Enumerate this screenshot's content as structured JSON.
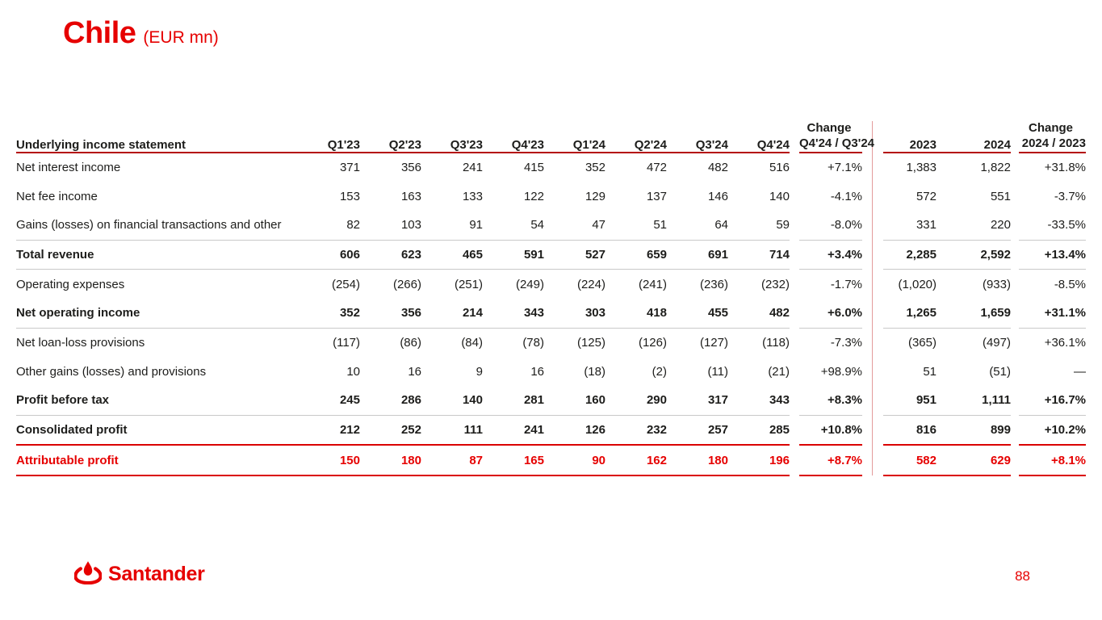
{
  "title": {
    "main": "Chile",
    "unit": "(EUR mn)"
  },
  "colors": {
    "brand_red": "#e60000",
    "header_dark_red": "#990000",
    "rule_red": "#da0000",
    "rule_gray": "#c9c9c9",
    "divider_pink": "#e39b9b",
    "text": "#1d1d1b"
  },
  "table": {
    "header": {
      "label": "Underlying income statement",
      "quarters": [
        "Q1'23",
        "Q2'23",
        "Q3'23",
        "Q4'23",
        "Q1'24",
        "Q2'24",
        "Q3'24",
        "Q4'24"
      ],
      "change_q": {
        "top": "Change",
        "bottom": "Q4'24 / Q3'24"
      },
      "years": [
        "2023",
        "2024"
      ],
      "change_y": {
        "top": "Change",
        "bottom": "2024 / 2023"
      }
    },
    "rows": [
      {
        "label": "Net interest income",
        "style": "normal",
        "border": "none",
        "quarters": [
          "371",
          "356",
          "241",
          "415",
          "352",
          "472",
          "482",
          "516"
        ],
        "change_q": "+7.1%",
        "years": [
          "1,383",
          "1,822"
        ],
        "change_y": "+31.8%"
      },
      {
        "label": "Net fee income",
        "style": "normal",
        "border": "none",
        "quarters": [
          "153",
          "163",
          "133",
          "122",
          "129",
          "137",
          "146",
          "140"
        ],
        "change_q": "-4.1%",
        "years": [
          "572",
          "551"
        ],
        "change_y": "-3.7%"
      },
      {
        "label": "Gains (losses) on financial transactions and other",
        "style": "normal",
        "border": "gray",
        "quarters": [
          "82",
          "103",
          "91",
          "54",
          "47",
          "51",
          "64",
          "59"
        ],
        "change_q": "-8.0%",
        "years": [
          "331",
          "220"
        ],
        "change_y": "-33.5%"
      },
      {
        "label": "Total revenue",
        "style": "bold",
        "border": "gray",
        "quarters": [
          "606",
          "623",
          "465",
          "591",
          "527",
          "659",
          "691",
          "714"
        ],
        "change_q": "+3.4%",
        "years": [
          "2,285",
          "2,592"
        ],
        "change_y": "+13.4%"
      },
      {
        "label": "Operating expenses",
        "style": "normal",
        "border": "none",
        "quarters": [
          "(254)",
          "(266)",
          "(251)",
          "(249)",
          "(224)",
          "(241)",
          "(236)",
          "(232)"
        ],
        "change_q": "-1.7%",
        "years": [
          "(1,020)",
          "(933)"
        ],
        "change_y": "-8.5%"
      },
      {
        "label": "Net operating income",
        "style": "bold",
        "border": "gray",
        "quarters": [
          "352",
          "356",
          "214",
          "343",
          "303",
          "418",
          "455",
          "482"
        ],
        "change_q": "+6.0%",
        "years": [
          "1,265",
          "1,659"
        ],
        "change_y": "+31.1%"
      },
      {
        "label": "Net loan-loss provisions",
        "style": "normal",
        "border": "none",
        "quarters": [
          "(117)",
          "(86)",
          "(84)",
          "(78)",
          "(125)",
          "(126)",
          "(127)",
          "(118)"
        ],
        "change_q": "-7.3%",
        "years": [
          "(365)",
          "(497)"
        ],
        "change_y": "+36.1%"
      },
      {
        "label": "Other gains (losses) and provisions",
        "style": "normal",
        "border": "none",
        "quarters": [
          "10",
          "16",
          "9",
          "16",
          "(18)",
          "(2)",
          "(11)",
          "(21)"
        ],
        "change_q": "+98.9%",
        "years": [
          "51",
          "(51)"
        ],
        "change_y": "—"
      },
      {
        "label": "Profit before tax",
        "style": "bold",
        "border": "gray",
        "quarters": [
          "245",
          "286",
          "140",
          "281",
          "160",
          "290",
          "317",
          "343"
        ],
        "change_q": "+8.3%",
        "years": [
          "951",
          "1,111"
        ],
        "change_y": "+16.7%"
      },
      {
        "label": "Consolidated profit",
        "style": "bold",
        "border": "red",
        "quarters": [
          "212",
          "252",
          "111",
          "241",
          "126",
          "232",
          "257",
          "285"
        ],
        "change_q": "+10.8%",
        "years": [
          "816",
          "899"
        ],
        "change_y": "+10.2%"
      },
      {
        "label": "Attributable profit",
        "style": "red",
        "border": "red",
        "quarters": [
          "150",
          "180",
          "87",
          "165",
          "90",
          "162",
          "180",
          "196"
        ],
        "change_q": "+8.7%",
        "years": [
          "582",
          "629"
        ],
        "change_y": "+8.1%"
      }
    ]
  },
  "footer": {
    "logo_text": "Santander",
    "flame_icon": "santander-flame-icon",
    "page_number": "88"
  }
}
